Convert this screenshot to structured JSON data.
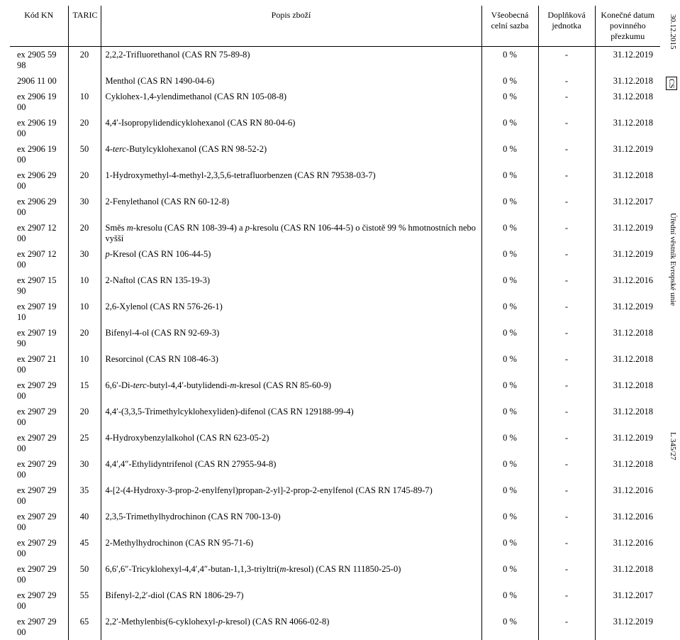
{
  "margins": {
    "top": "30.12.2015",
    "cs": "CS",
    "mid": "Úřední věstník Evropské unie",
    "bot": "L 345/27"
  },
  "header": {
    "kn": "Kód KN",
    "taric": "TARIC",
    "popis": "Popis zboží",
    "sazba": "Všeobecná celní sazba",
    "jedn": "Doplňková jednotka",
    "datum": "Konečné datum povinného přezkumu"
  },
  "rows": [
    {
      "kn": "ex 2905 59 98",
      "taric": "20",
      "popis": "2,2,2-Trifluorethanol (CAS RN 75-89-8)",
      "sazba": "0 %",
      "jedn": "-",
      "datum": "31.12.2019"
    },
    {
      "kn": "2906 11 00",
      "taric": "",
      "popis": "Menthol (CAS RN 1490-04-6)",
      "sazba": "0 %",
      "jedn": "-",
      "datum": "31.12.2018"
    },
    {
      "kn": "ex 2906 19 00",
      "taric": "10",
      "popis": "Cyklohex-1,4-ylendimethanol (CAS RN 105-08-8)",
      "sazba": "0 %",
      "jedn": "-",
      "datum": "31.12.2018"
    },
    {
      "kn": "ex 2906 19 00",
      "taric": "20",
      "popis": "4,4′-Isopropylidendicyklohexanol (CAS RN 80-04-6)",
      "sazba": "0 %",
      "jedn": "-",
      "datum": "31.12.2018"
    },
    {
      "kn": "ex 2906 19 00",
      "taric": "50",
      "popis_html": "4-<i>terc</i>-Butylcyklohexanol (CAS RN 98-52-2)",
      "sazba": "0 %",
      "jedn": "-",
      "datum": "31.12.2019"
    },
    {
      "kn": "ex 2906 29 00",
      "taric": "20",
      "popis": "1-Hydroxymethyl-4-methyl-2,3,5,6-tetrafluorbenzen (CAS RN 79538-03-7)",
      "sazba": "0 %",
      "jedn": "-",
      "datum": "31.12.2018"
    },
    {
      "kn": "ex 2906 29 00",
      "taric": "30",
      "popis": "2-Fenylethanol (CAS RN 60-12-8)",
      "sazba": "0 %",
      "jedn": "-",
      "datum": "31.12.2017"
    },
    {
      "kn": "ex 2907 12 00",
      "taric": "20",
      "popis_html": "Směs <i>m</i>-kresolu (CAS RN 108-39-4) a <i>p</i>-kresolu (CAS RN 106-44-5) o čistotě 99 % hmotnostních nebo vyšší",
      "sazba": "0 %",
      "jedn": "-",
      "datum": "31.12.2019"
    },
    {
      "kn": "ex 2907 12 00",
      "taric": "30",
      "popis_html": "<i>p</i>-Kresol (CAS RN 106-44-5)",
      "sazba": "0 %",
      "jedn": "-",
      "datum": "31.12.2019"
    },
    {
      "kn": "ex 2907 15 90",
      "taric": "10",
      "popis": "2-Naftol (CAS RN 135-19-3)",
      "sazba": "0 %",
      "jedn": "-",
      "datum": "31.12.2016"
    },
    {
      "kn": "ex 2907 19 10",
      "taric": "10",
      "popis": "2,6-Xylenol (CAS RN 576-26-1)",
      "sazba": "0 %",
      "jedn": "-",
      "datum": "31.12.2019"
    },
    {
      "kn": "ex 2907 19 90",
      "taric": "20",
      "popis": "Bifenyl-4-ol (CAS RN 92-69-3)",
      "sazba": "0 %",
      "jedn": "-",
      "datum": "31.12.2018"
    },
    {
      "kn": "ex 2907 21 00",
      "taric": "10",
      "popis": "Resorcinol (CAS RN 108-46-3)",
      "sazba": "0 %",
      "jedn": "-",
      "datum": "31.12.2018"
    },
    {
      "kn": "ex 2907 29 00",
      "taric": "15",
      "popis_html": "6,6′-Di-<i>terc</i>-butyl-4,4′-butylidendi-<i>m</i>-kresol (CAS RN 85-60-9)",
      "sazba": "0 %",
      "jedn": "-",
      "datum": "31.12.2018"
    },
    {
      "kn": "ex 2907 29 00",
      "taric": "20",
      "popis": "4,4′-(3,3,5-Trimethylcyklohexyliden)-difenol (CAS RN 129188-99-4)",
      "sazba": "0 %",
      "jedn": "-",
      "datum": "31.12.2018"
    },
    {
      "kn": "ex 2907 29 00",
      "taric": "25",
      "popis": "4-Hydroxybenzylalkohol (CAS RN 623-05-2)",
      "sazba": "0 %",
      "jedn": "-",
      "datum": "31.12.2019"
    },
    {
      "kn": "ex 2907 29 00",
      "taric": "30",
      "popis": "4,4′,4″-Ethylidyntrifenol (CAS RN 27955-94-8)",
      "sazba": "0 %",
      "jedn": "-",
      "datum": "31.12.2018"
    },
    {
      "kn": "ex 2907 29 00",
      "taric": "35",
      "popis": "4-[2-(4-Hydroxy-3-prop-2-enylfenyl)propan-2-yl]-2-prop-2-enylfenol (CAS RN 1745-89-7)",
      "sazba": "0 %",
      "jedn": "-",
      "datum": "31.12.2016"
    },
    {
      "kn": "ex 2907 29 00",
      "taric": "40",
      "popis": "2,3,5-Trimethylhydrochinon (CAS RN 700-13-0)",
      "sazba": "0 %",
      "jedn": "-",
      "datum": "31.12.2016"
    },
    {
      "kn": "ex 2907 29 00",
      "taric": "45",
      "popis": "2-Methylhydrochinon (CAS RN 95-71-6)",
      "sazba": "0 %",
      "jedn": "-",
      "datum": "31.12.2016"
    },
    {
      "kn": "ex 2907 29 00",
      "taric": "50",
      "popis_html": "6,6′,6″-Tricyklohexyl-4,4′,4″-butan-1,1,3-triyltri(<i>m</i>-kresol) (CAS RN 111850-25-0)",
      "sazba": "0 %",
      "jedn": "-",
      "datum": "31.12.2018"
    },
    {
      "kn": "ex 2907 29 00",
      "taric": "55",
      "popis": "Bifenyl-2,2′-diol (CAS RN 1806-29-7)",
      "sazba": "0 %",
      "jedn": "-",
      "datum": "31.12.2017"
    },
    {
      "kn": "ex 2907 29 00",
      "taric": "65",
      "popis_html": "2,2′-Methylenbis(6-cyklohexyl-<i>p</i>-kresol) (CAS RN 4066-02-8)",
      "sazba": "0 %",
      "jedn": "-",
      "datum": "31.12.2019"
    }
  ]
}
